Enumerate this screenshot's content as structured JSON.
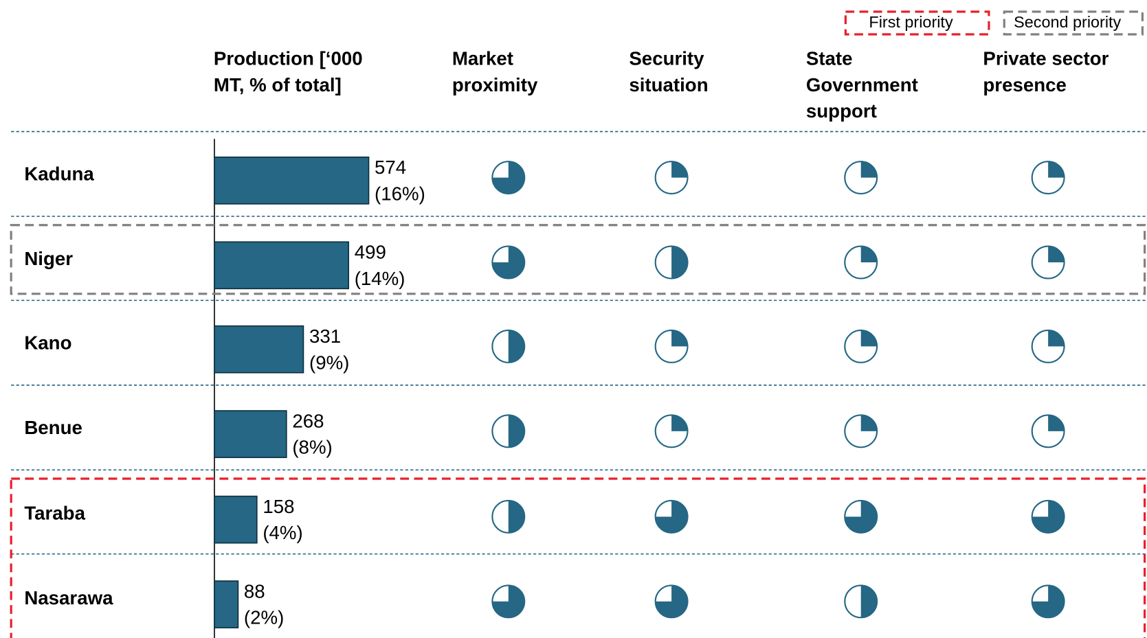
{
  "chart_data": {
    "type": "bar",
    "orientation": "horizontal",
    "value_header": [
      "Production [‘000",
      "MT, % of total]"
    ],
    "categories": [
      "Kaduna",
      "Niger",
      "Kano",
      "Benue",
      "Taraba",
      "Nasarawa"
    ],
    "values": [
      574,
      499,
      331,
      268,
      158,
      88
    ],
    "share_labels": [
      "(16%)",
      "(14%)",
      "(9%)",
      "(8%)",
      "(4%)",
      "(2%)"
    ],
    "color": "#256784",
    "ratings": [
      {
        "name": [
          "Market",
          "proximity"
        ],
        "values": [
          0.75,
          0.75,
          0.5,
          0.5,
          0.5,
          0.75
        ]
      },
      {
        "name": [
          "Security",
          "situation"
        ],
        "values": [
          0.25,
          0.5,
          0.25,
          0.25,
          0.75,
          0.75
        ]
      },
      {
        "name": [
          "State",
          "Government",
          "support"
        ],
        "values": [
          0.25,
          0.25,
          0.25,
          0.25,
          0.75,
          0.5
        ]
      },
      {
        "name": [
          "Private sector",
          "presence"
        ],
        "values": [
          0.25,
          0.25,
          0.25,
          0.25,
          0.75,
          0.75
        ]
      }
    ],
    "legend": [
      {
        "name": "First priority",
        "color": "#e8202a",
        "rows": [
          "Taraba",
          "Nasarawa"
        ]
      },
      {
        "name": "Second priority",
        "color": "#808080",
        "rows": [
          "Niger"
        ]
      }
    ]
  }
}
